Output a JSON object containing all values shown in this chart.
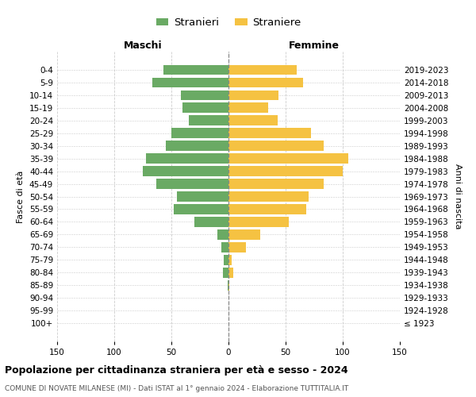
{
  "age_groups": [
    "100+",
    "95-99",
    "90-94",
    "85-89",
    "80-84",
    "75-79",
    "70-74",
    "65-69",
    "60-64",
    "55-59",
    "50-54",
    "45-49",
    "40-44",
    "35-39",
    "30-34",
    "25-29",
    "20-24",
    "15-19",
    "10-14",
    "5-9",
    "0-4"
  ],
  "birth_years": [
    "≤ 1923",
    "1924-1928",
    "1929-1933",
    "1934-1938",
    "1939-1943",
    "1944-1948",
    "1949-1953",
    "1954-1958",
    "1959-1963",
    "1964-1968",
    "1969-1973",
    "1974-1978",
    "1979-1983",
    "1984-1988",
    "1989-1993",
    "1994-1998",
    "1999-2003",
    "2004-2008",
    "2009-2013",
    "2014-2018",
    "2019-2023"
  ],
  "maschi": [
    0,
    0,
    0,
    1,
    5,
    4,
    6,
    10,
    30,
    48,
    45,
    63,
    75,
    72,
    55,
    50,
    35,
    40,
    42,
    67,
    57
  ],
  "femmine": [
    0,
    0,
    0,
    1,
    4,
    3,
    15,
    28,
    53,
    68,
    70,
    83,
    100,
    105,
    83,
    72,
    43,
    35,
    44,
    65,
    60
  ],
  "male_color": "#6aaa64",
  "female_color": "#f5c242",
  "title": "Popolazione per cittadinanza straniera per età e sesso - 2024",
  "subtitle": "COMUNE DI NOVATE MILANESE (MI) - Dati ISTAT al 1° gennaio 2024 - Elaborazione TUTTITALIA.IT",
  "xlabel_left": "Maschi",
  "xlabel_right": "Femmine",
  "ylabel_left": "Fasce di età",
  "ylabel_right": "Anni di nascita",
  "legend_male": "Stranieri",
  "legend_female": "Straniere",
  "xlim": 150,
  "xticks": [
    -150,
    -100,
    -50,
    0,
    50,
    100,
    150
  ],
  "background_color": "#ffffff",
  "grid_color": "#cccccc",
  "title_fontsize": 9,
  "subtitle_fontsize": 6.5,
  "tick_fontsize": 7.5,
  "label_fontsize": 8,
  "header_fontsize": 9
}
